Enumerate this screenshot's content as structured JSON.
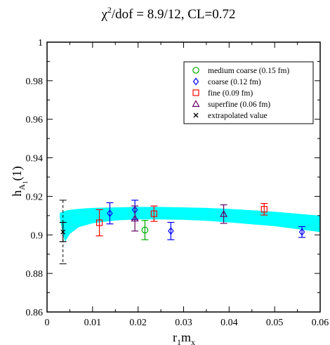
{
  "chart_data": {
    "type": "scatter",
    "title": "χ²/dof = 8.9/12, CL=0.72",
    "title_parts": {
      "chi": "χ",
      "sup": "2",
      "rest": "/dof = 8.9/12, CL=0.72"
    },
    "xlabel": {
      "main": "r",
      "sub1": "1",
      "mid": "m",
      "sub2": "x"
    },
    "ylabel": {
      "main": "h",
      "sub1": "A",
      "sub2": "1",
      "rest": "(1)"
    },
    "xlim": [
      0,
      0.06
    ],
    "ylim": [
      0.86,
      1.0
    ],
    "xticks": [
      0,
      0.01,
      0.02,
      0.03,
      0.04,
      0.05,
      0.06
    ],
    "xtick_labels": [
      "0",
      "0.01",
      "0.02",
      "0.03",
      "0.04",
      "0.05",
      "0.06"
    ],
    "yticks": [
      0.86,
      0.88,
      0.9,
      0.92,
      0.94,
      0.96,
      0.98,
      1.0
    ],
    "ytick_labels": [
      "0.86",
      "0.88",
      "0.9",
      "0.92",
      "0.94",
      "0.96",
      "0.98",
      "1"
    ],
    "grid": false,
    "legend_position": "top-right",
    "band": {
      "color": "#00ffff",
      "x": [
        0.0028,
        0.0035,
        0.004,
        0.005,
        0.007,
        0.01,
        0.015,
        0.02,
        0.025,
        0.03,
        0.035,
        0.04,
        0.045,
        0.05,
        0.055,
        0.06
      ],
      "upper": [
        0.9115,
        0.912,
        0.9125,
        0.913,
        0.9135,
        0.914,
        0.9143,
        0.9145,
        0.9145,
        0.9143,
        0.914,
        0.9135,
        0.9128,
        0.912,
        0.911,
        0.91
      ],
      "lower": [
        0.9085,
        0.9,
        0.8965,
        0.9005,
        0.904,
        0.906,
        0.9075,
        0.908,
        0.908,
        0.9078,
        0.9073,
        0.9065,
        0.9055,
        0.9045,
        0.903,
        0.9015
      ]
    },
    "series": [
      {
        "name": "medium coarse (0.15 fm)",
        "marker": "circle",
        "color": "#00aa00",
        "points": [
          {
            "x": 0.0215,
            "y": 0.9025,
            "err": 0.005
          }
        ]
      },
      {
        "name": "coarse (0.12 fm)",
        "marker": "diamond",
        "color": "#0000ff",
        "points": [
          {
            "x": 0.0138,
            "y": 0.9112,
            "err": 0.0055
          },
          {
            "x": 0.0193,
            "y": 0.913,
            "err": 0.005
          },
          {
            "x": 0.0272,
            "y": 0.902,
            "err": 0.0045
          },
          {
            "x": 0.056,
            "y": 0.9015,
            "err": 0.0028
          }
        ]
      },
      {
        "name": "fine (0.09 fm)",
        "marker": "square",
        "color": "#ff0000",
        "points": [
          {
            "x": 0.0115,
            "y": 0.9063,
            "err": 0.0068
          },
          {
            "x": 0.0235,
            "y": 0.911,
            "err": 0.004
          },
          {
            "x": 0.0477,
            "y": 0.9133,
            "err": 0.003
          }
        ]
      },
      {
        "name": "superfine (0.06 fm)",
        "marker": "triangle",
        "color": "#660066",
        "points": [
          {
            "x": 0.0193,
            "y": 0.9085,
            "err": 0.0065
          },
          {
            "x": 0.0388,
            "y": 0.9108,
            "err": 0.0048
          }
        ]
      },
      {
        "name": "extrapolated value",
        "marker": "x",
        "color": "#000000",
        "points": [
          {
            "x": 0.0035,
            "y": 0.9015,
            "err": 0.005,
            "err_dashed": 0.0165
          }
        ]
      }
    ]
  }
}
